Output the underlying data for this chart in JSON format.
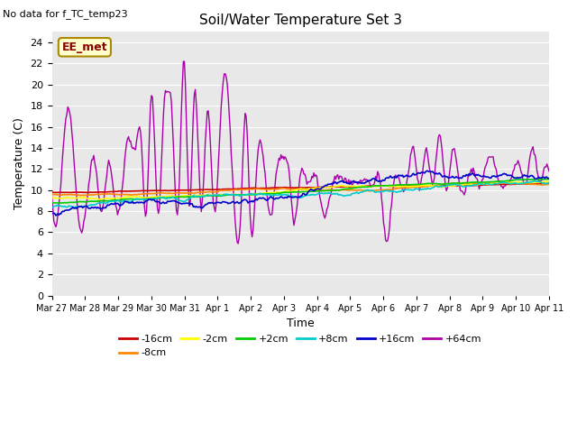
{
  "title": "Soil/Water Temperature Set 3",
  "xlabel": "Time",
  "ylabel": "Temperature (C)",
  "no_data_text": "No data for f_TC_temp23",
  "annotation_text": "EE_met",
  "ylim": [
    0,
    25
  ],
  "yticks": [
    0,
    2,
    4,
    6,
    8,
    10,
    12,
    14,
    16,
    18,
    20,
    22,
    24
  ],
  "plot_bg_color": "#e8e8e8",
  "series": [
    {
      "label": "-16cm",
      "color": "#cc0000"
    },
    {
      "label": "-8cm",
      "color": "#ff8800"
    },
    {
      "label": "-2cm",
      "color": "#ffff00"
    },
    {
      "label": "+2cm",
      "color": "#00cc00"
    },
    {
      "label": "+8cm",
      "color": "#00cccc"
    },
    {
      "label": "+16cm",
      "color": "#0000cc"
    },
    {
      "label": "+64cm",
      "color": "#aa00aa"
    }
  ],
  "x_tick_labels": [
    "Mar 27",
    "Mar 28",
    "Mar 29",
    "Mar 30",
    "Mar 31",
    "Apr 1",
    "Apr 2",
    "Apr 3",
    "Apr 4",
    "Apr 5",
    "Apr 6",
    "Apr 7",
    "Apr 8",
    "Apr 9",
    "Apr 10",
    "Apr 11"
  ],
  "purple_keypoints_x": [
    0,
    0.1,
    0.5,
    0.85,
    1.0,
    1.3,
    1.5,
    1.7,
    2.0,
    2.3,
    2.5,
    2.7,
    2.85,
    3.0,
    3.2,
    3.4,
    3.5,
    3.6,
    3.8,
    4.0,
    4.15,
    4.3,
    4.5,
    4.7,
    4.9,
    5.1,
    5.3,
    5.5,
    5.7,
    5.85,
    6.0,
    6.2,
    6.4,
    6.6,
    6.8,
    7.0,
    7.15,
    7.3,
    7.5,
    7.7,
    8.0,
    8.2,
    8.5,
    8.7,
    9.0,
    9.3,
    9.5,
    9.7,
    9.9,
    10.1,
    10.3,
    10.5,
    10.7,
    10.9,
    11.1,
    11.3,
    11.5,
    11.7,
    11.9,
    12.1,
    12.3,
    12.5,
    12.7,
    12.9,
    13.1,
    13.3,
    13.5,
    13.7,
    13.9,
    14.1,
    14.3,
    14.5,
    14.7,
    14.9,
    15.0
  ],
  "purple_keypoints_y": [
    9.5,
    6.5,
    17.8,
    6.3,
    7.5,
    12.7,
    8.0,
    12.3,
    7.8,
    14.9,
    13.9,
    14.5,
    7.6,
    19.0,
    7.7,
    18.8,
    19.2,
    18.5,
    7.8,
    22.0,
    8.5,
    19.3,
    8.5,
    17.5,
    8.0,
    17.4,
    19.8,
    8.5,
    7.8,
    17.4,
    6.5,
    13.0,
    12.5,
    7.5,
    12.2,
    13.0,
    12.0,
    7.0,
    11.5,
    10.8,
    11.0,
    7.5,
    10.9,
    11.2,
    10.8,
    10.8,
    11.0,
    10.5,
    10.8,
    5.0,
    10.2,
    10.8,
    10.5,
    14.0,
    10.3,
    13.8,
    10.5,
    15.3,
    10.0,
    14.0,
    10.5,
    10.3,
    12.0,
    10.5,
    12.3,
    13.0,
    10.8,
    10.5,
    11.5,
    12.5,
    10.5,
    14.0,
    11.0,
    12.2,
    11.5
  ]
}
